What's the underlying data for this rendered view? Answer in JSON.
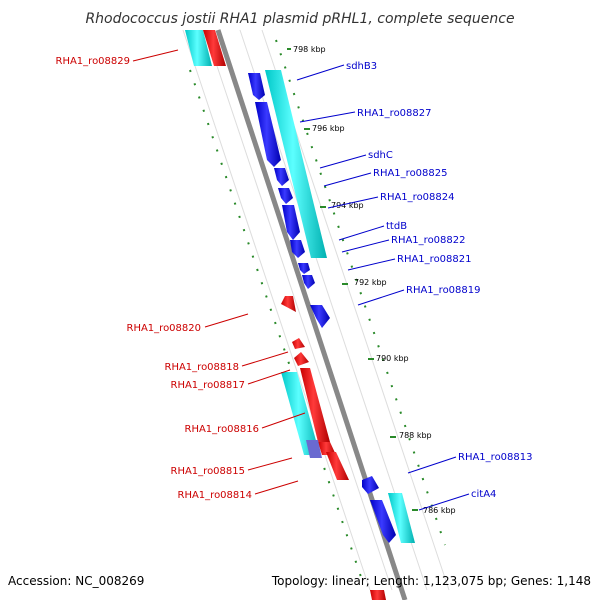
{
  "title": "Rhodococcus jostii RHA1 plasmid pRHL1, complete sequence",
  "footer": {
    "accession": "Accession: NC_008269",
    "summary": "Topology: linear; Length: 1,123,075 bp; Genes: 1,148"
  },
  "scale_labels": [
    "798 kbp",
    "796 kbp",
    "794 kbp",
    "792 kbp",
    "790 kbp",
    "788 kbp",
    "786 kbp"
  ],
  "forward_genes": [
    "sdhB3",
    "RHA1_ro08827",
    "sdhC",
    "RHA1_ro08825",
    "RHA1_ro08824",
    "ttdB",
    "RHA1_ro08822",
    "RHA1_ro08821",
    "RHA1_ro08819",
    "RHA1_ro08813",
    "citA4"
  ],
  "reverse_genes": [
    "RHA1_ro08829",
    "RHA1_ro08820",
    "RHA1_ro08818",
    "RHA1_ro08817",
    "RHA1_ro08816",
    "RHA1_ro08815",
    "RHA1_ro08814"
  ],
  "colors": {
    "forward_cds": "#0000ee",
    "reverse_cds": "#ee0000",
    "forward_feature": "#00e5e5",
    "reverse_feature": "#00e5e5",
    "forward_label": "#0000cc",
    "reverse_label": "#cc0000",
    "backbone": "#888888",
    "dotted_track": "#2a8a2a"
  }
}
